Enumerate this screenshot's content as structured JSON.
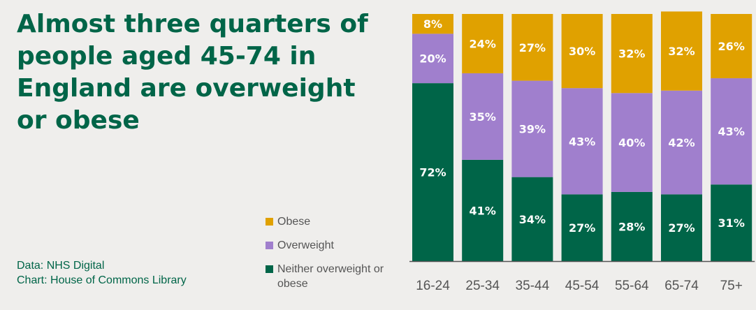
{
  "title": "Almost three quarters of people aged 45-74 in England are overweight or obese",
  "source": {
    "data": "Data: NHS Digital",
    "chart": "Chart: House of Commons Library"
  },
  "colors": {
    "background": "#efeeec",
    "title": "#006548",
    "obese": "#e0a100",
    "overweight": "#a07fcd",
    "neither": "#006548",
    "label": "#ffffff",
    "axis": "#555555"
  },
  "chart_data": {
    "type": "bar",
    "stacked": true,
    "percent": true,
    "categories": [
      "16-24",
      "25-34",
      "35-44",
      "45-54",
      "55-64",
      "65-74",
      "75+"
    ],
    "ylim": [
      0,
      100
    ],
    "series": [
      {
        "name": "Neither overweight or obese",
        "color": "#006548",
        "values": [
          72,
          41,
          34,
          27,
          28,
          27,
          31
        ]
      },
      {
        "name": "Overweight",
        "color": "#a07fcd",
        "values": [
          20,
          35,
          39,
          43,
          40,
          42,
          43
        ]
      },
      {
        "name": "Obese",
        "color": "#e0a100",
        "values": [
          8,
          24,
          27,
          30,
          32,
          32,
          26
        ]
      }
    ],
    "legend": [
      {
        "label": "Obese",
        "color": "#e0a100"
      },
      {
        "label": "Overweight",
        "color": "#a07fcd"
      },
      {
        "label": "Neither overweight or obese",
        "color": "#006548"
      }
    ],
    "legend_position": "left of chart"
  }
}
